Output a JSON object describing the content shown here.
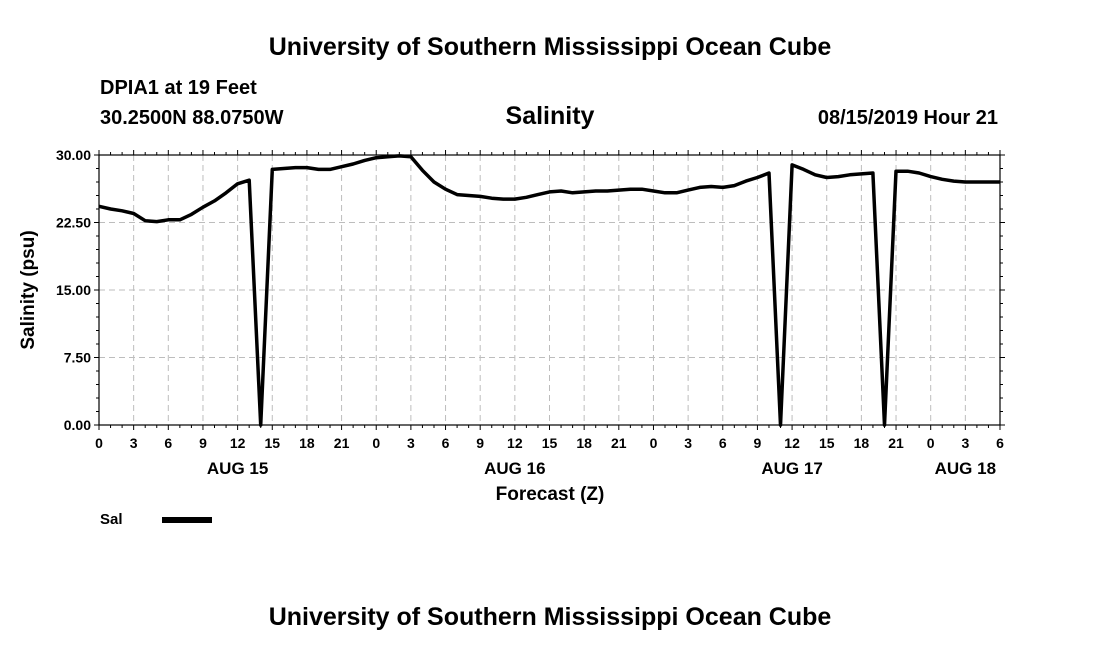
{
  "header": {
    "top_title": "University of Southern Mississippi Ocean Cube",
    "bottom_title": "University of Southern Mississippi Ocean Cube",
    "station": "DPIA1 at 19 Feet",
    "coords": "30.2500N 88.0750W",
    "timestamp": "08/15/2019 Hour 21"
  },
  "chart_data": {
    "type": "line",
    "title": "Salinity",
    "xlabel": "Forecast (Z)",
    "ylabel": "Salinity (psu)",
    "ylim": [
      0,
      30
    ],
    "xlim": [
      0,
      78
    ],
    "y_ticks": [
      "0.00",
      "7.50",
      "15.00",
      "22.50",
      "30.00"
    ],
    "x_tick_labels": [
      "0",
      "3",
      "6",
      "9",
      "12",
      "15",
      "18",
      "21",
      "0",
      "3",
      "6",
      "9",
      "12",
      "15",
      "18",
      "21",
      "0",
      "3",
      "6",
      "9",
      "12",
      "15",
      "18",
      "21",
      "0",
      "3",
      "6"
    ],
    "date_labels": [
      {
        "label": "AUG 15",
        "x": 12
      },
      {
        "label": "AUG 16",
        "x": 36
      },
      {
        "label": "AUG 17",
        "x": 60
      },
      {
        "label": "AUG 18",
        "x": 75
      }
    ],
    "grid": true,
    "legend": {
      "position": "bottom-left",
      "entries": [
        {
          "name": "Sal",
          "color": "#000000"
        }
      ]
    },
    "series": [
      {
        "name": "Sal",
        "color": "#000000",
        "x": [
          0,
          1,
          2,
          3,
          4,
          5,
          6,
          7,
          8,
          9,
          10,
          11,
          12,
          13,
          14,
          15,
          16,
          17,
          18,
          19,
          20,
          21,
          22,
          23,
          24,
          25,
          26,
          27,
          28,
          29,
          30,
          31,
          32,
          33,
          34,
          35,
          36,
          37,
          38,
          39,
          40,
          41,
          42,
          43,
          44,
          45,
          46,
          47,
          48,
          49,
          50,
          51,
          52,
          53,
          54,
          55,
          56,
          57,
          58,
          59,
          60,
          61,
          62,
          63,
          64,
          65,
          66,
          67,
          68,
          69,
          70,
          71,
          72,
          73,
          74,
          75,
          76,
          77,
          78
        ],
        "values": [
          24.3,
          24.0,
          23.8,
          23.5,
          22.7,
          22.6,
          22.8,
          22.8,
          23.4,
          24.2,
          24.9,
          25.8,
          26.8,
          27.2,
          0.0,
          28.4,
          28.5,
          28.6,
          28.6,
          28.4,
          28.4,
          28.7,
          29.0,
          29.4,
          29.7,
          29.8,
          29.9,
          29.8,
          28.3,
          27.0,
          26.2,
          25.6,
          25.5,
          25.4,
          25.2,
          25.1,
          25.1,
          25.3,
          25.6,
          25.9,
          26.0,
          25.8,
          25.9,
          26.0,
          26.0,
          26.1,
          26.2,
          26.2,
          26.0,
          25.8,
          25.8,
          26.1,
          26.4,
          26.5,
          26.4,
          26.6,
          27.1,
          27.5,
          28.0,
          0.0,
          28.9,
          28.4,
          27.8,
          27.5,
          27.6,
          27.8,
          27.9,
          28.0,
          0.0,
          28.2,
          28.2,
          28.0,
          27.6,
          27.3,
          27.1,
          27.0,
          27.0,
          27.0,
          27.0
        ]
      }
    ]
  }
}
